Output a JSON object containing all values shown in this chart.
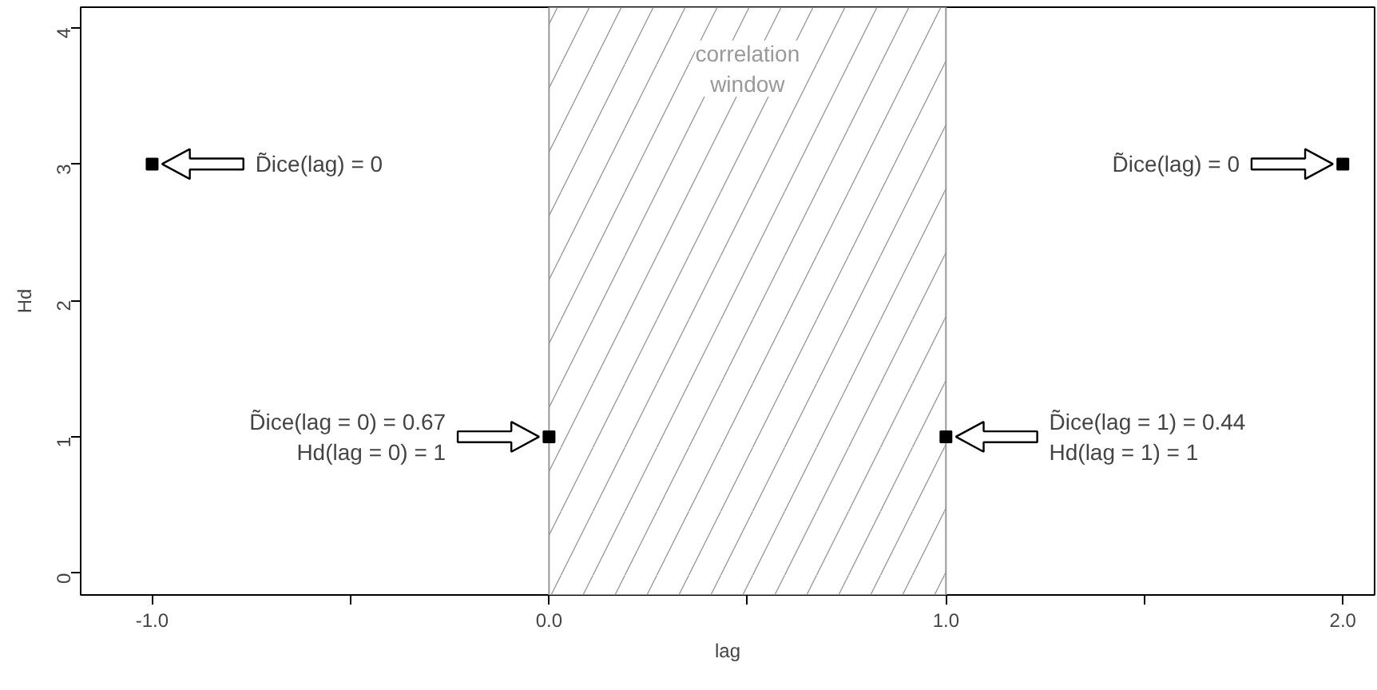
{
  "chart_data": {
    "type": "scatter",
    "xlabel": "lag",
    "ylabel": "Hd",
    "x": [
      -1,
      0,
      1,
      2
    ],
    "values": [
      3,
      1,
      1,
      3
    ],
    "color": "#000000",
    "marker": "square",
    "xlim": [
      -1.18,
      2.08
    ],
    "ylim": [
      -0.16,
      4.15
    ],
    "xticks": [
      {
        "value": -1,
        "label": "-1.0"
      },
      {
        "value": -0.5,
        "label": null
      },
      {
        "value": 0,
        "label": "0.0"
      },
      {
        "value": 0.5,
        "label": null
      },
      {
        "value": 1,
        "label": "1.0"
      },
      {
        "value": 1.5,
        "label": null
      },
      {
        "value": 2,
        "label": "2.0"
      }
    ],
    "yticks": [
      0,
      1,
      2,
      3,
      4
    ],
    "grid": false,
    "bands": [
      {
        "axis": "x",
        "from": 0,
        "to": 1,
        "label": "correlation window",
        "color": "#999999"
      }
    ],
    "annotations": [
      "D̃ice(lag) = 0",
      "D̃ice(lag = 0) = 0.67\nHd(lag = 0) = 1",
      "D̃ice(lag = 1) = 0.44\nHd(lag = 1) = 1",
      "D̃ice(lag) = 0"
    ]
  }
}
